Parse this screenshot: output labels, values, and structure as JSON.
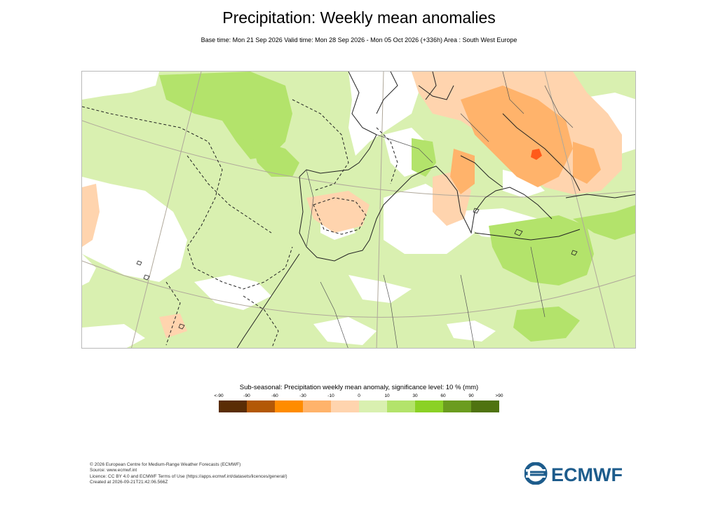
{
  "title": "Precipitation: Weekly mean anomalies",
  "subtitle": "Base time: Mon 21 Sep 2026 Valid time: Mon 28 Sep 2026 - Mon 05 Oct 2026 (+336h) Area : South West Europe",
  "legend": {
    "title": "Sub-seasonal: Precipitation weekly mean anomaly, significance level: 10 % (mm)",
    "ticks": [
      "<-90",
      "-90",
      "-60",
      "-30",
      "-10",
      "0",
      "10",
      "30",
      "60",
      "90",
      ">90"
    ],
    "colors": [
      "#5a2d05",
      "#b35806",
      "#ff8c00",
      "#ffb36b",
      "#ffd4ae",
      "#d9f0b0",
      "#b3e36b",
      "#8bd125",
      "#6b9c1f",
      "#4f7310"
    ]
  },
  "map_colors": {
    "ocean": "#ffffff",
    "light_green": "#d9f0b0",
    "mid_green": "#b3e36b",
    "dark_green": "#8bd125",
    "light_orange": "#ffd4ae",
    "mid_orange": "#ffb36b",
    "red": "#ff5a1a"
  },
  "footer": {
    "lines": [
      "© 2026 European Centre for Medium-Range Weather Forecasts (ECMWF)",
      "Source: www.ecmwf.int",
      "Licence: CC BY 4.0 and ECMWF Terms of Use (https://apps.ecmwf.int/datasets/licences/general/)",
      "Created at 2026-09-21T21:42:06.566Z"
    ]
  },
  "logo": {
    "text": "ECMWF",
    "color": "#1d5c8c",
    "icon": "ecmwf-logo-icon"
  }
}
